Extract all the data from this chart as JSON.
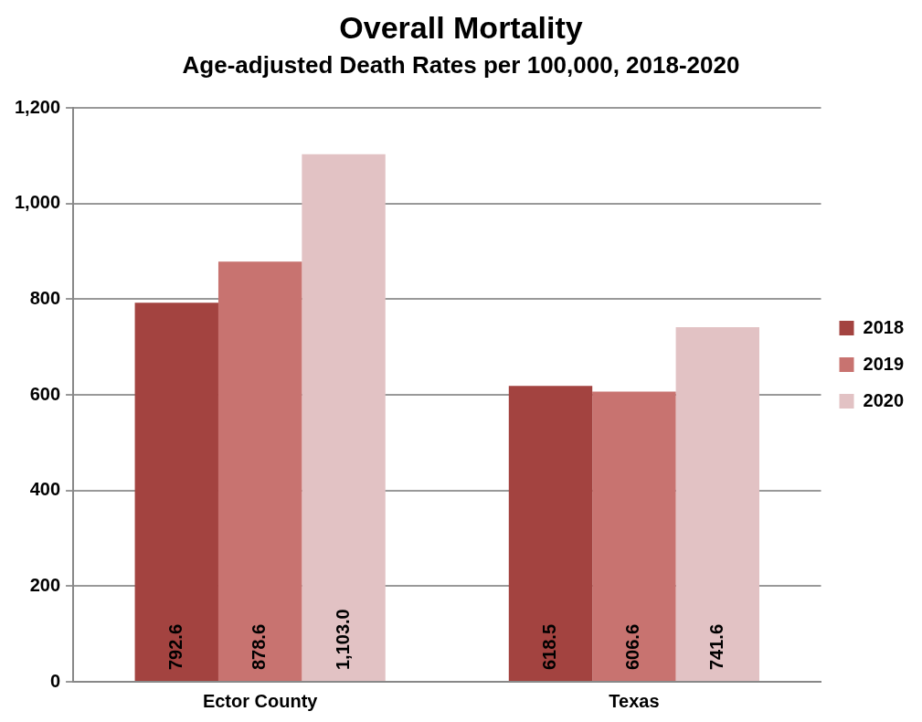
{
  "chart_data": {
    "type": "bar",
    "title": "Overall Mortality",
    "subtitle": "Age-adjusted Death Rates per 100,000, 2018-2020",
    "categories": [
      "Ector County",
      "Texas"
    ],
    "series": [
      {
        "name": "2018",
        "color": "#a34340",
        "values": [
          792.6,
          618.5
        ],
        "value_labels": [
          "792.6",
          "618.5"
        ]
      },
      {
        "name": "2019",
        "color": "#c87370",
        "values": [
          878.6,
          606.6
        ],
        "value_labels": [
          "878.6",
          "606.6"
        ]
      },
      {
        "name": "2020",
        "color": "#e2c2c4",
        "values": [
          1103.0,
          741.6
        ],
        "value_labels": [
          "1,103.0",
          "741.6"
        ]
      }
    ],
    "ylim": [
      0,
      1200
    ],
    "yticks": [
      0,
      200,
      400,
      600,
      800,
      {
        "value": 1000,
        "label": "1,000"
      },
      {
        "value": 1200,
        "label": "1,200"
      }
    ],
    "grid": "y",
    "legend": "right"
  }
}
